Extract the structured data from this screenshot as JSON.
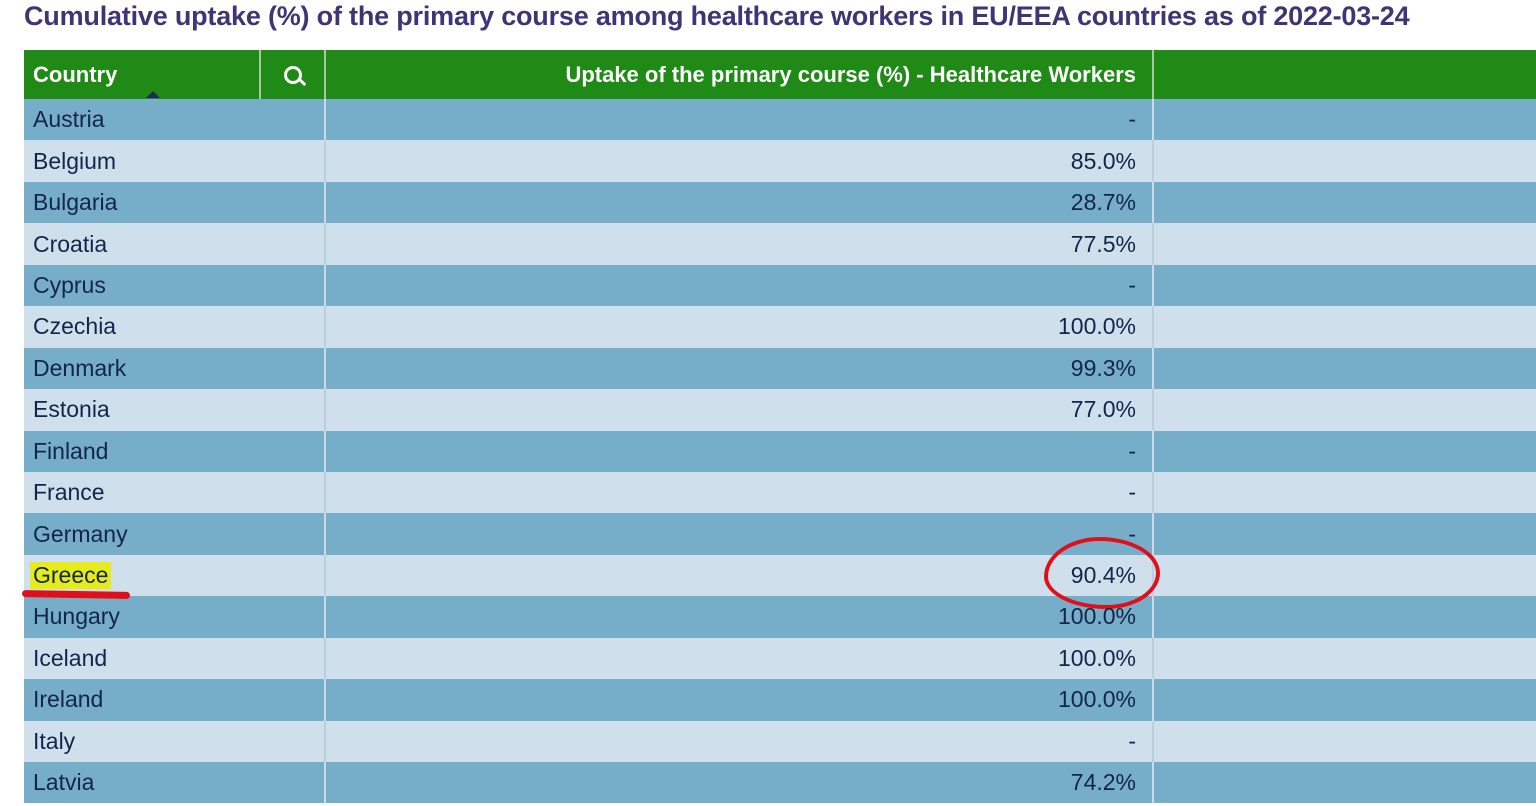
{
  "title": "Cumulative uptake (%) of the primary course among healthcare workers in EU/EEA countries as of 2022-03-24",
  "table": {
    "headers": {
      "country": "Country",
      "search_icon": "search-icon",
      "uptake": "Uptake of the primary course (%) - Healthcare Workers"
    },
    "rows": [
      {
        "country": "Austria",
        "uptake": "-"
      },
      {
        "country": "Belgium",
        "uptake": "85.0%"
      },
      {
        "country": "Bulgaria",
        "uptake": "28.7%"
      },
      {
        "country": "Croatia",
        "uptake": "77.5%"
      },
      {
        "country": "Cyprus",
        "uptake": "-"
      },
      {
        "country": "Czechia",
        "uptake": "100.0%"
      },
      {
        "country": "Denmark",
        "uptake": "99.3%"
      },
      {
        "country": "Estonia",
        "uptake": "77.0%"
      },
      {
        "country": "Finland",
        "uptake": "-"
      },
      {
        "country": "France",
        "uptake": "-"
      },
      {
        "country": "Germany",
        "uptake": "-"
      },
      {
        "country": "Greece",
        "uptake": "90.4%"
      },
      {
        "country": "Hungary",
        "uptake": "100.0%"
      },
      {
        "country": "Iceland",
        "uptake": "100.0%"
      },
      {
        "country": "Ireland",
        "uptake": "100.0%"
      },
      {
        "country": "Italy",
        "uptake": "-"
      },
      {
        "country": "Latvia",
        "uptake": "74.2%"
      }
    ]
  },
  "colors": {
    "header_bg": "#1f8a16",
    "row_dark": "#76adc9",
    "row_light": "#cfe0ec",
    "title_text": "#3d3576",
    "annotation_red": "#e0101b",
    "highlight_yellow": "#e6ec1a"
  }
}
